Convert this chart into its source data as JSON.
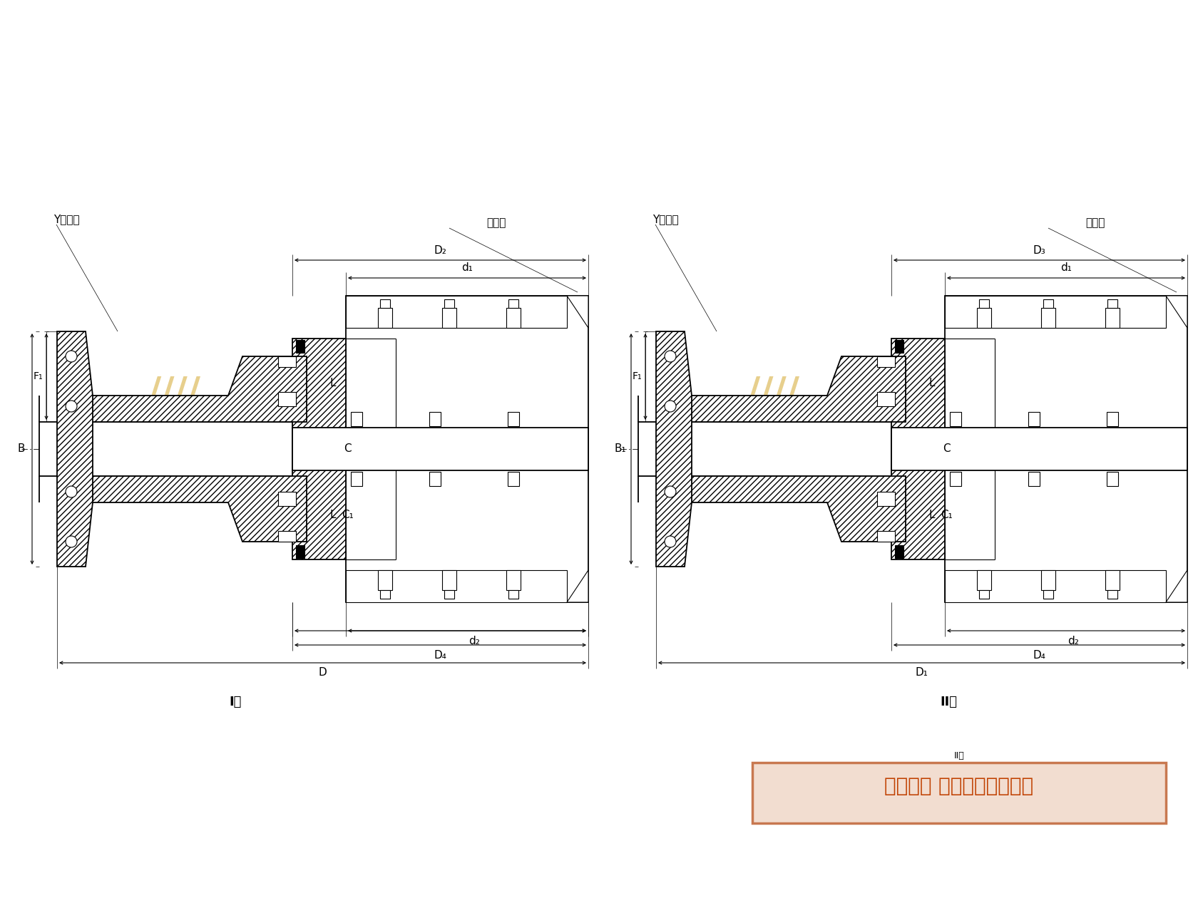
{
  "bg_color": "#ffffff",
  "line_color": "#000000",
  "watermark_blue": "#b8d4e8",
  "watermark_gold": "#d4a830",
  "ll": {
    "y_type": "Y型轴孔",
    "oil": "注油孔",
    "F": "F₁",
    "B": "B",
    "L": "L",
    "C": "C",
    "C1": "C₁",
    "d1": "d₁",
    "d2": "d₂",
    "D2": "D₂",
    "D4": "D₄",
    "D": "D",
    "type": "I型"
  },
  "rl": {
    "y_type": "Y型轴孔",
    "oil": "注油孔",
    "F": "F₁",
    "B1": "B₁",
    "L": "L",
    "C": "C",
    "C1": "C₁",
    "d1": "d₁",
    "d2": "d₂",
    "D3": "D₃",
    "D4": "D₄",
    "D1": "D₁",
    "type": "II型"
  },
  "copy_text": "版权所有 侵权必被严厉追究",
  "copy_bg": "#f2ddd0",
  "copy_border": "#c87850",
  "copy_text_color": "#c04000"
}
